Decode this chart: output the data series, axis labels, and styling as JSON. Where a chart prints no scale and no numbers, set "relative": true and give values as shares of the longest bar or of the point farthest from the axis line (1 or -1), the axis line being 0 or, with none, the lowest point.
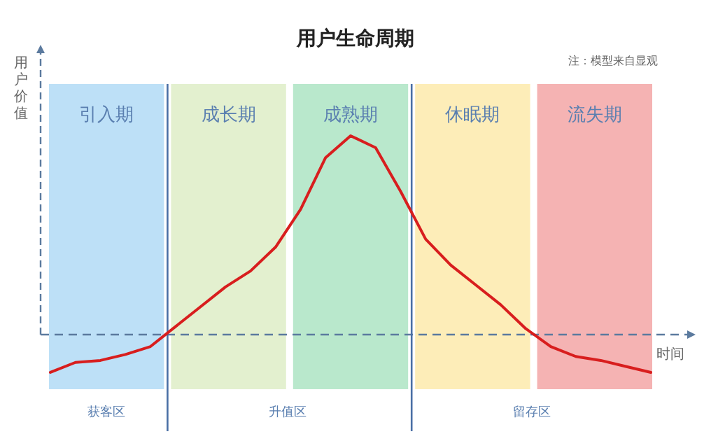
{
  "chart_data": {
    "type": "line",
    "title": "用户生命周期",
    "xlabel": "时间",
    "ylabel": "用户价值",
    "relative": true,
    "marker": "none",
    "line_style": "solid",
    "categories": [
      null,
      null,
      null,
      null,
      null,
      null,
      null,
      null,
      null,
      null,
      null,
      null,
      null,
      null,
      null,
      null,
      null,
      null,
      null,
      null,
      null,
      null,
      null,
      null,
      null
    ],
    "series": [
      {
        "color": "#d81e1e",
        "values": [
          -0.19,
          -0.14,
          -0.13,
          -0.1,
          -0.06,
          0.04,
          0.14,
          0.24,
          0.32,
          0.44,
          0.63,
          0.89,
          1,
          0.94,
          0.72,
          0.48,
          0.35,
          0.25,
          0.15,
          0.03,
          -0.06,
          -0.11,
          -0.13,
          -0.16,
          -0.19
        ]
      }
    ],
    "ref_lines": [
      {
        "axis": "y",
        "value": 0,
        "color": "#5b7a9e",
        "line_style": "dashed"
      }
    ],
    "annotations": [
      "注：模型来自显观",
      "引入期",
      "成长期",
      "成熟期",
      "休眠期",
      "流失期",
      "获客区",
      "升值区",
      "留存区"
    ]
  }
}
